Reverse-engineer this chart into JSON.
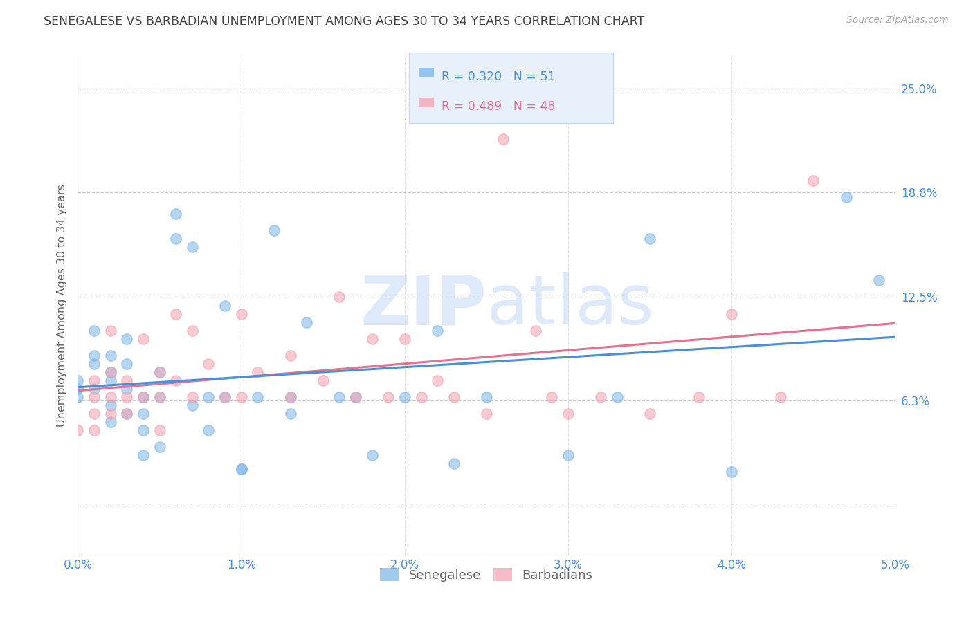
{
  "title": "SENEGALESE VS BARBADIAN UNEMPLOYMENT AMONG AGES 30 TO 34 YEARS CORRELATION CHART",
  "source": "Source: ZipAtlas.com",
  "ylabel": "Unemployment Among Ages 30 to 34 years",
  "xlim": [
    0.0,
    0.05
  ],
  "ylim": [
    -0.03,
    0.27
  ],
  "yticks": [
    0.0,
    0.063,
    0.125,
    0.188,
    0.25
  ],
  "ytick_labels": [
    "",
    "6.3%",
    "12.5%",
    "18.8%",
    "25.0%"
  ],
  "xticks": [
    0.0,
    0.01,
    0.02,
    0.03,
    0.04,
    0.05
  ],
  "xtick_labels": [
    "0.0%",
    "1.0%",
    "2.0%",
    "3.0%",
    "4.0%",
    "5.0%"
  ],
  "blue_color": "#7ab5e8",
  "pink_color": "#f4a0b0",
  "blue_R": 0.32,
  "blue_N": 51,
  "pink_R": 0.489,
  "pink_N": 48,
  "senegalese_x": [
    0.0,
    0.0,
    0.0,
    0.001,
    0.001,
    0.001,
    0.001,
    0.002,
    0.002,
    0.002,
    0.002,
    0.002,
    0.003,
    0.003,
    0.003,
    0.003,
    0.004,
    0.004,
    0.004,
    0.004,
    0.005,
    0.005,
    0.005,
    0.006,
    0.006,
    0.007,
    0.007,
    0.008,
    0.008,
    0.009,
    0.009,
    0.01,
    0.01,
    0.011,
    0.012,
    0.013,
    0.013,
    0.014,
    0.016,
    0.017,
    0.018,
    0.02,
    0.022,
    0.023,
    0.025,
    0.03,
    0.033,
    0.035,
    0.04,
    0.047,
    0.049
  ],
  "senegalese_y": [
    0.065,
    0.07,
    0.075,
    0.09,
    0.105,
    0.085,
    0.07,
    0.09,
    0.08,
    0.075,
    0.06,
    0.05,
    0.1,
    0.085,
    0.07,
    0.055,
    0.065,
    0.055,
    0.045,
    0.03,
    0.08,
    0.065,
    0.035,
    0.175,
    0.16,
    0.155,
    0.06,
    0.065,
    0.045,
    0.12,
    0.065,
    0.022,
    0.022,
    0.065,
    0.165,
    0.065,
    0.055,
    0.11,
    0.065,
    0.065,
    0.03,
    0.065,
    0.105,
    0.025,
    0.065,
    0.03,
    0.065,
    0.16,
    0.02,
    0.185,
    0.135
  ],
  "barbadian_x": [
    0.0,
    0.001,
    0.001,
    0.001,
    0.001,
    0.002,
    0.002,
    0.002,
    0.002,
    0.003,
    0.003,
    0.003,
    0.004,
    0.004,
    0.005,
    0.005,
    0.005,
    0.006,
    0.006,
    0.007,
    0.007,
    0.008,
    0.009,
    0.01,
    0.01,
    0.011,
    0.013,
    0.013,
    0.015,
    0.016,
    0.017,
    0.018,
    0.019,
    0.02,
    0.021,
    0.022,
    0.023,
    0.025,
    0.026,
    0.028,
    0.029,
    0.03,
    0.032,
    0.035,
    0.038,
    0.04,
    0.043,
    0.045
  ],
  "barbadian_y": [
    0.045,
    0.075,
    0.065,
    0.055,
    0.045,
    0.105,
    0.08,
    0.065,
    0.055,
    0.075,
    0.065,
    0.055,
    0.1,
    0.065,
    0.08,
    0.065,
    0.045,
    0.115,
    0.075,
    0.105,
    0.065,
    0.085,
    0.065,
    0.115,
    0.065,
    0.08,
    0.09,
    0.065,
    0.075,
    0.125,
    0.065,
    0.1,
    0.065,
    0.1,
    0.065,
    0.075,
    0.065,
    0.055,
    0.22,
    0.105,
    0.065,
    0.055,
    0.065,
    0.055,
    0.065,
    0.115,
    0.065,
    0.195
  ],
  "watermark_zip": "ZIP",
  "watermark_atlas": "atlas",
  "background_color": "#ffffff",
  "title_color": "#444444",
  "axis_label_color": "#666666",
  "tick_color": "#4a90d9",
  "pink_tick_color": "#e87090",
  "grid_color": "#cccccc",
  "legend_box_color": "#e8f0fb",
  "legend_border_color": "#c8d8f0"
}
